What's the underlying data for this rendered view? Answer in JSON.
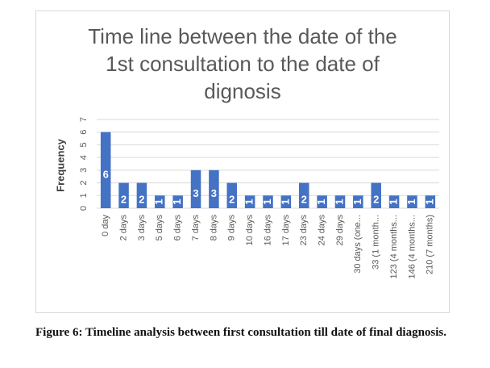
{
  "chart_data": {
    "type": "bar",
    "title": "Time line between the date of the 1st consultation to the date of dignosis",
    "y_label": "Frequency",
    "categories": [
      "0 day",
      "2 days",
      "3 days",
      "5 days",
      "6 days",
      "7 days",
      "8 days",
      "9 days",
      "10 days",
      "16 days",
      "17 days",
      "23 days",
      "24 days",
      "29 days",
      "30 days (one...",
      "33 (1 month...",
      "123 (4 months...",
      "146 (4 months...",
      "210 (7 months)"
    ],
    "values": [
      6,
      2,
      2,
      1,
      1,
      3,
      3,
      2,
      1,
      1,
      1,
      2,
      1,
      1,
      1,
      2,
      1,
      1,
      1
    ],
    "color": "#4472c4",
    "ylim": [
      0,
      7
    ],
    "yticks": [
      0,
      1,
      2,
      3,
      4,
      5,
      6,
      7
    ],
    "grid": true
  },
  "caption": "Figure 6: Timeline analysis between first consultation till date of final diagnosis."
}
